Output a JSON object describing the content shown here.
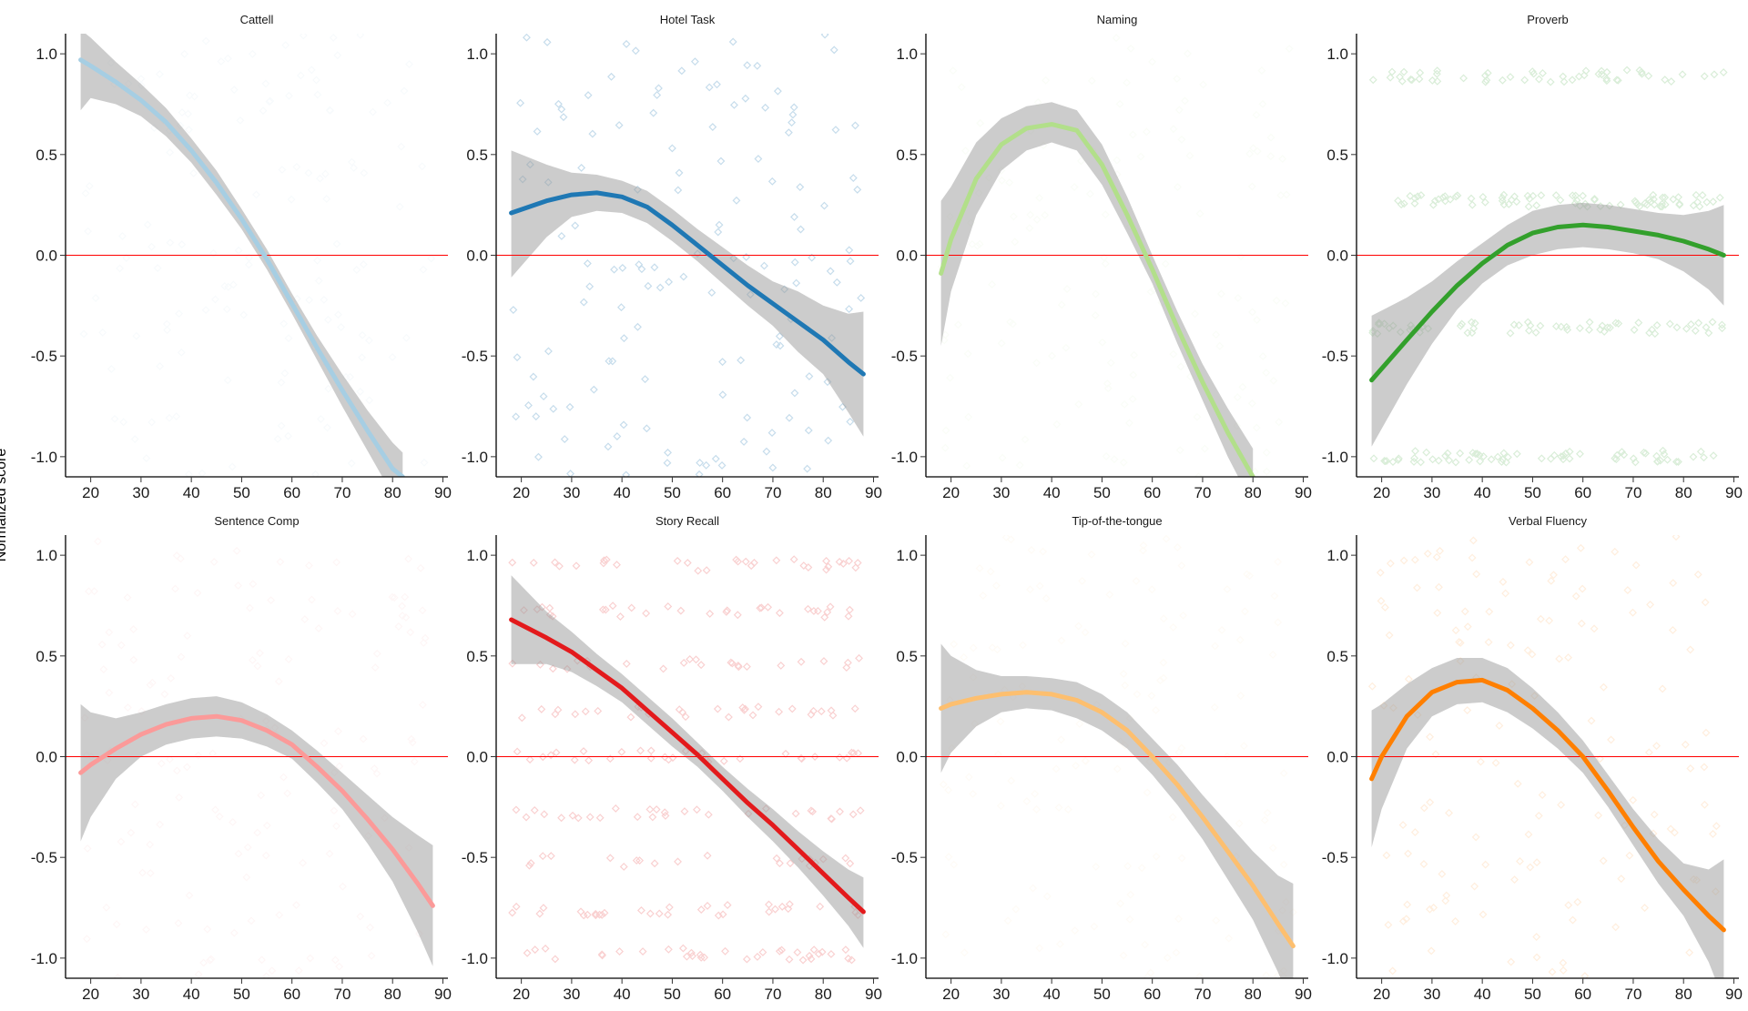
{
  "ylabel": "Normalized score",
  "chart_data": {
    "type": "line",
    "xlim": [
      15,
      91
    ],
    "ylim": [
      -1.1,
      1.1
    ],
    "xticks": [
      20,
      30,
      40,
      50,
      60,
      70,
      80,
      90
    ],
    "yticks": [
      -1.0,
      -0.5,
      0.0,
      0.5,
      1.0
    ],
    "reference_line": {
      "y": 0.0,
      "color": "#ff0000"
    },
    "grid": false,
    "layout": "facets 2 rows x 4 columns",
    "panels": [
      {
        "title": "Cattell",
        "color": "#a6cee3",
        "x": [
          18,
          20,
          25,
          30,
          35,
          40,
          45,
          50,
          55,
          60,
          65,
          70,
          75,
          80,
          82
        ],
        "y": [
          0.97,
          0.94,
          0.86,
          0.77,
          0.66,
          0.52,
          0.36,
          0.18,
          -0.02,
          -0.24,
          -0.46,
          -0.67,
          -0.87,
          -1.06,
          -1.1
        ],
        "ci_upper": [
          1.12,
          1.08,
          0.96,
          0.85,
          0.73,
          0.58,
          0.42,
          0.23,
          0.03,
          -0.19,
          -0.4,
          -0.59,
          -0.77,
          -0.93,
          -0.98
        ],
        "ci_lower": [
          0.72,
          0.78,
          0.75,
          0.69,
          0.59,
          0.46,
          0.3,
          0.13,
          -0.07,
          -0.29,
          -0.52,
          -0.75,
          -0.97,
          -1.19,
          -1.22
        ],
        "point_opacity": 0.08
      },
      {
        "title": "Hotel Task",
        "color": "#1f78b4",
        "x": [
          18,
          25,
          30,
          35,
          40,
          45,
          50,
          55,
          60,
          65,
          70,
          75,
          80,
          85,
          88
        ],
        "y": [
          0.21,
          0.27,
          0.3,
          0.31,
          0.29,
          0.24,
          0.15,
          0.05,
          -0.05,
          -0.15,
          -0.24,
          -0.33,
          -0.42,
          -0.53,
          -0.59
        ],
        "ci_upper": [
          0.52,
          0.45,
          0.41,
          0.4,
          0.37,
          0.32,
          0.23,
          0.13,
          0.04,
          -0.05,
          -0.13,
          -0.18,
          -0.25,
          -0.29,
          -0.28
        ],
        "ci_lower": [
          -0.11,
          0.09,
          0.19,
          0.22,
          0.21,
          0.16,
          0.07,
          -0.03,
          -0.14,
          -0.25,
          -0.35,
          -0.48,
          -0.59,
          -0.78,
          -0.9
        ],
        "point_opacity": 0.25
      },
      {
        "title": "Naming",
        "color": "#b2df8a",
        "x": [
          18,
          20,
          25,
          30,
          35,
          40,
          45,
          50,
          55,
          60,
          65,
          70,
          75,
          80
        ],
        "y": [
          -0.09,
          0.08,
          0.38,
          0.55,
          0.63,
          0.65,
          0.62,
          0.45,
          0.2,
          -0.07,
          -0.36,
          -0.63,
          -0.88,
          -1.1
        ],
        "ci_upper": [
          0.27,
          0.34,
          0.56,
          0.68,
          0.74,
          0.76,
          0.72,
          0.55,
          0.29,
          0.0,
          -0.28,
          -0.54,
          -0.76,
          -0.96
        ],
        "ci_lower": [
          -0.45,
          -0.18,
          0.2,
          0.42,
          0.52,
          0.56,
          0.52,
          0.35,
          0.11,
          -0.14,
          -0.44,
          -0.72,
          -1.0,
          -1.24
        ],
        "point_opacity": 0.06
      },
      {
        "title": "Proverb",
        "color": "#33a02c",
        "x": [
          18,
          25,
          30,
          35,
          40,
          45,
          50,
          55,
          60,
          65,
          70,
          75,
          80,
          85,
          88
        ],
        "y": [
          -0.62,
          -0.42,
          -0.28,
          -0.15,
          -0.04,
          0.05,
          0.11,
          0.14,
          0.15,
          0.14,
          0.12,
          0.1,
          0.07,
          0.03,
          0.0
        ],
        "ci_upper": [
          -0.3,
          -0.21,
          -0.13,
          -0.03,
          0.06,
          0.15,
          0.22,
          0.25,
          0.26,
          0.25,
          0.23,
          0.21,
          0.2,
          0.22,
          0.25
        ],
        "ci_lower": [
          -0.95,
          -0.64,
          -0.44,
          -0.27,
          -0.14,
          -0.05,
          0.0,
          0.03,
          0.04,
          0.03,
          0.01,
          -0.02,
          -0.08,
          -0.17,
          -0.25
        ],
        "point_opacity": 0.18,
        "banded_levels": [
          0.89,
          0.27,
          -0.36,
          -1.0
        ]
      },
      {
        "title": "Sentence Comp",
        "color": "#fb9a99",
        "x": [
          18,
          20,
          25,
          30,
          35,
          40,
          45,
          50,
          55,
          60,
          65,
          70,
          75,
          80,
          85,
          88
        ],
        "y": [
          -0.08,
          -0.04,
          0.04,
          0.11,
          0.16,
          0.19,
          0.2,
          0.18,
          0.13,
          0.06,
          -0.05,
          -0.17,
          -0.31,
          -0.46,
          -0.63,
          -0.74
        ],
        "ci_upper": [
          0.26,
          0.22,
          0.19,
          0.22,
          0.26,
          0.29,
          0.3,
          0.27,
          0.21,
          0.13,
          0.03,
          -0.08,
          -0.19,
          -0.3,
          -0.39,
          -0.44
        ],
        "ci_lower": [
          -0.42,
          -0.3,
          -0.11,
          0.0,
          0.06,
          0.09,
          0.1,
          0.09,
          0.05,
          -0.01,
          -0.13,
          -0.26,
          -0.43,
          -0.62,
          -0.87,
          -1.04
        ],
        "point_opacity": 0.08
      },
      {
        "title": "Story Recall",
        "color": "#e31a1c",
        "x": [
          18,
          25,
          30,
          35,
          40,
          45,
          50,
          55,
          60,
          65,
          70,
          75,
          80,
          85,
          88
        ],
        "y": [
          0.68,
          0.59,
          0.52,
          0.43,
          0.34,
          0.23,
          0.12,
          0.01,
          -0.11,
          -0.23,
          -0.34,
          -0.46,
          -0.58,
          -0.7,
          -0.77
        ],
        "ci_upper": [
          0.9,
          0.72,
          0.62,
          0.51,
          0.41,
          0.3,
          0.19,
          0.07,
          -0.05,
          -0.16,
          -0.26,
          -0.37,
          -0.47,
          -0.56,
          -0.6
        ],
        "ci_lower": [
          0.46,
          0.46,
          0.42,
          0.35,
          0.27,
          0.16,
          0.05,
          -0.05,
          -0.17,
          -0.3,
          -0.42,
          -0.55,
          -0.69,
          -0.84,
          -0.95
        ],
        "point_opacity": 0.2,
        "banded_levels": [
          0.95,
          0.72,
          0.46,
          0.22,
          0.0,
          -0.28,
          -0.52,
          -0.76,
          -0.98
        ]
      },
      {
        "title": "Tip-of-the-tongue",
        "color": "#fdbf6f",
        "x": [
          18,
          20,
          25,
          30,
          35,
          40,
          45,
          50,
          55,
          60,
          65,
          70,
          75,
          80,
          85,
          88
        ],
        "y": [
          0.24,
          0.26,
          0.29,
          0.31,
          0.32,
          0.31,
          0.28,
          0.22,
          0.13,
          0.0,
          -0.14,
          -0.3,
          -0.47,
          -0.64,
          -0.83,
          -0.94
        ],
        "ci_upper": [
          0.56,
          0.5,
          0.43,
          0.4,
          0.4,
          0.39,
          0.37,
          0.31,
          0.22,
          0.09,
          -0.04,
          -0.19,
          -0.33,
          -0.47,
          -0.59,
          -0.63
        ],
        "ci_lower": [
          -0.08,
          0.02,
          0.15,
          0.22,
          0.24,
          0.23,
          0.19,
          0.13,
          0.04,
          -0.09,
          -0.24,
          -0.41,
          -0.61,
          -0.81,
          -1.07,
          -1.25
        ],
        "point_opacity": 0.06
      },
      {
        "title": "Verbal Fluency",
        "color": "#ff7f00",
        "x": [
          18,
          20,
          25,
          30,
          35,
          40,
          45,
          50,
          55,
          60,
          65,
          70,
          75,
          80,
          85,
          88
        ],
        "y": [
          -0.11,
          0.0,
          0.2,
          0.32,
          0.37,
          0.38,
          0.33,
          0.24,
          0.13,
          0.0,
          -0.17,
          -0.35,
          -0.52,
          -0.66,
          -0.79,
          -0.86
        ],
        "ci_upper": [
          0.23,
          0.26,
          0.36,
          0.44,
          0.49,
          0.49,
          0.44,
          0.34,
          0.22,
          0.08,
          -0.09,
          -0.26,
          -0.41,
          -0.53,
          -0.56,
          -0.51
        ],
        "ci_lower": [
          -0.45,
          -0.26,
          0.04,
          0.2,
          0.26,
          0.27,
          0.22,
          0.14,
          0.04,
          -0.08,
          -0.25,
          -0.44,
          -0.63,
          -0.79,
          -1.02,
          -1.21
        ],
        "point_opacity": 0.13
      }
    ]
  }
}
